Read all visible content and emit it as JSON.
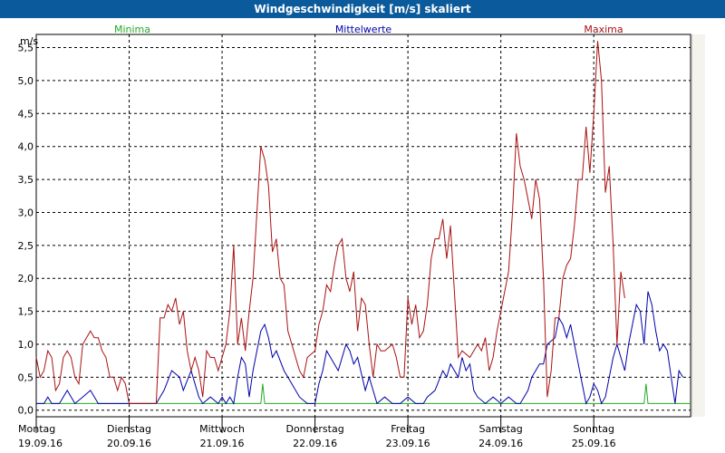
{
  "window": {
    "title": "Windgeschwindigkeit [m/s] skaliert"
  },
  "chart_data": {
    "type": "line",
    "title": "Windgeschwindigkeit [m/s] skaliert",
    "ylabel": "m/s",
    "ylim": [
      -0.1,
      5.7
    ],
    "yticks": [
      0.0,
      0.5,
      1.0,
      1.5,
      2.0,
      2.5,
      3.0,
      3.5,
      4.0,
      4.5,
      5.0,
      5.5
    ],
    "ytick_labels": [
      "0,0",
      "0,5",
      "1,0",
      "1,5",
      "2,0",
      "2,5",
      "3,0",
      "3,5",
      "4,0",
      "4,5",
      "5,0",
      "5,5"
    ],
    "grid": true,
    "legend_position": "top",
    "x_unit": "hours",
    "xlim": [
      0,
      169
    ],
    "days": [
      {
        "weekday": "Montag",
        "date": "19.09.16",
        "start": 0
      },
      {
        "weekday": "Dienstag",
        "date": "20.09.16",
        "start": 24
      },
      {
        "weekday": "Mittwoch",
        "date": "21.09.16",
        "start": 48
      },
      {
        "weekday": "Donnerstag",
        "date": "22.09.16",
        "start": 72
      },
      {
        "weekday": "Freitag",
        "date": "23.09.16",
        "start": 96
      },
      {
        "weekday": "Samstag",
        "date": "24.09.16",
        "start": 120
      },
      {
        "weekday": "Sonntag",
        "date": "25.09.16",
        "start": 144
      }
    ],
    "series": [
      {
        "name": "Minima",
        "color": "#22aa22",
        "points": [
          [
            0,
            0.1
          ],
          [
            25,
            0.1
          ],
          [
            58,
            0.1
          ],
          [
            58.5,
            0.4
          ],
          [
            59,
            0.1
          ],
          [
            140,
            0.1
          ],
          [
            157,
            0.1
          ],
          [
            157.5,
            0.4
          ],
          [
            158,
            0.1
          ],
          [
            169,
            0.1
          ]
        ]
      },
      {
        "name": "Mittelwerte",
        "color": "#0000aa",
        "points": [
          [
            0,
            0.1
          ],
          [
            2,
            0.1
          ],
          [
            3,
            0.2
          ],
          [
            4,
            0.1
          ],
          [
            6,
            0.1
          ],
          [
            8,
            0.3
          ],
          [
            10,
            0.1
          ],
          [
            12,
            0.2
          ],
          [
            14,
            0.3
          ],
          [
            16,
            0.1
          ],
          [
            20,
            0.1
          ],
          [
            24,
            0.1
          ],
          [
            31,
            0.1
          ],
          [
            33,
            0.3
          ],
          [
            35,
            0.6
          ],
          [
            37,
            0.5
          ],
          [
            38,
            0.3
          ],
          [
            40,
            0.6
          ],
          [
            42,
            0.2
          ],
          [
            43,
            0.1
          ],
          [
            45,
            0.2
          ],
          [
            47,
            0.1
          ],
          [
            48,
            0.2
          ],
          [
            49,
            0.1
          ],
          [
            50,
            0.2
          ],
          [
            51,
            0.1
          ],
          [
            52,
            0.5
          ],
          [
            53,
            0.8
          ],
          [
            54,
            0.7
          ],
          [
            55,
            0.2
          ],
          [
            56,
            0.6
          ],
          [
            58,
            1.2
          ],
          [
            59,
            1.3
          ],
          [
            60,
            1.1
          ],
          [
            61,
            0.8
          ],
          [
            62,
            0.9
          ],
          [
            64,
            0.6
          ],
          [
            66,
            0.4
          ],
          [
            68,
            0.2
          ],
          [
            70,
            0.1
          ],
          [
            72,
            0.1
          ],
          [
            73,
            0.4
          ],
          [
            74,
            0.6
          ],
          [
            75,
            0.9
          ],
          [
            76,
            0.8
          ],
          [
            78,
            0.6
          ],
          [
            80,
            1.0
          ],
          [
            81,
            0.9
          ],
          [
            82,
            0.7
          ],
          [
            83,
            0.8
          ],
          [
            85,
            0.3
          ],
          [
            86,
            0.5
          ],
          [
            88,
            0.1
          ],
          [
            90,
            0.2
          ],
          [
            92,
            0.1
          ],
          [
            94,
            0.1
          ],
          [
            96,
            0.2
          ],
          [
            98,
            0.1
          ],
          [
            100,
            0.1
          ],
          [
            101,
            0.2
          ],
          [
            103,
            0.3
          ],
          [
            105,
            0.6
          ],
          [
            106,
            0.5
          ],
          [
            107,
            0.7
          ],
          [
            109,
            0.5
          ],
          [
            110,
            0.8
          ],
          [
            111,
            0.6
          ],
          [
            112,
            0.7
          ],
          [
            113,
            0.3
          ],
          [
            114,
            0.2
          ],
          [
            116,
            0.1
          ],
          [
            118,
            0.2
          ],
          [
            120,
            0.1
          ],
          [
            122,
            0.2
          ],
          [
            124,
            0.1
          ],
          [
            125,
            0.1
          ],
          [
            126,
            0.2
          ],
          [
            127,
            0.3
          ],
          [
            128,
            0.5
          ],
          [
            129,
            0.6
          ],
          [
            130,
            0.7
          ],
          [
            131,
            0.7
          ],
          [
            132,
            1.0
          ],
          [
            134,
            1.1
          ],
          [
            135,
            1.4
          ],
          [
            136,
            1.3
          ],
          [
            137,
            1.1
          ],
          [
            138,
            1.3
          ],
          [
            139,
            1.0
          ],
          [
            140,
            0.7
          ],
          [
            141,
            0.4
          ],
          [
            142,
            0.1
          ],
          [
            143,
            0.2
          ],
          [
            144,
            0.4
          ],
          [
            145,
            0.3
          ],
          [
            146,
            0.1
          ],
          [
            147,
            0.2
          ],
          [
            148,
            0.5
          ],
          [
            149,
            0.8
          ],
          [
            150,
            1.0
          ],
          [
            151,
            0.8
          ],
          [
            152,
            0.6
          ],
          [
            153,
            1.0
          ],
          [
            154,
            1.3
          ],
          [
            155,
            1.6
          ],
          [
            156,
            1.5
          ],
          [
            157,
            1.0
          ],
          [
            158,
            1.8
          ],
          [
            159,
            1.6
          ],
          [
            160,
            1.2
          ],
          [
            161,
            0.9
          ],
          [
            162,
            1.0
          ],
          [
            163,
            0.9
          ],
          [
            164,
            0.5
          ],
          [
            165,
            0.1
          ],
          [
            166,
            0.6
          ],
          [
            167,
            0.5
          ]
        ]
      },
      {
        "name": "Maxima",
        "color": "#aa1111",
        "points": [
          [
            0,
            0.8
          ],
          [
            1,
            0.5
          ],
          [
            2,
            0.6
          ],
          [
            3,
            0.9
          ],
          [
            4,
            0.8
          ],
          [
            5,
            0.3
          ],
          [
            6,
            0.4
          ],
          [
            7,
            0.8
          ],
          [
            8,
            0.9
          ],
          [
            9,
            0.8
          ],
          [
            10,
            0.5
          ],
          [
            11,
            0.4
          ],
          [
            12,
            1.0
          ],
          [
            13,
            1.1
          ],
          [
            14,
            1.2
          ],
          [
            15,
            1.1
          ],
          [
            16,
            1.1
          ],
          [
            17,
            0.9
          ],
          [
            18,
            0.8
          ],
          [
            19,
            0.5
          ],
          [
            20,
            0.5
          ],
          [
            21,
            0.3
          ],
          [
            22,
            0.5
          ],
          [
            23,
            0.4
          ],
          [
            24,
            0.1
          ],
          [
            27,
            0.1
          ],
          [
            29,
            0.1
          ],
          [
            31,
            0.1
          ],
          [
            32,
            1.4
          ],
          [
            33,
            1.4
          ],
          [
            34,
            1.6
          ],
          [
            35,
            1.5
          ],
          [
            36,
            1.7
          ],
          [
            37,
            1.3
          ],
          [
            38,
            1.5
          ],
          [
            39,
            0.9
          ],
          [
            40,
            0.6
          ],
          [
            41,
            0.8
          ],
          [
            42,
            0.6
          ],
          [
            43,
            0.2
          ],
          [
            44,
            0.9
          ],
          [
            45,
            0.8
          ],
          [
            46,
            0.8
          ],
          [
            47,
            0.6
          ],
          [
            48,
            0.8
          ],
          [
            49,
            1.0
          ],
          [
            50,
            1.5
          ],
          [
            51,
            2.5
          ],
          [
            52,
            1.0
          ],
          [
            53,
            1.4
          ],
          [
            54,
            0.9
          ],
          [
            55,
            1.5
          ],
          [
            56,
            2.0
          ],
          [
            57,
            3.0
          ],
          [
            58,
            4.0
          ],
          [
            59,
            3.8
          ],
          [
            60,
            3.4
          ],
          [
            61,
            2.4
          ],
          [
            62,
            2.6
          ],
          [
            63,
            2.0
          ],
          [
            64,
            1.9
          ],
          [
            65,
            1.2
          ],
          [
            66,
            1.0
          ],
          [
            67,
            0.8
          ],
          [
            68,
            0.6
          ],
          [
            69,
            0.5
          ],
          [
            70,
            0.8
          ],
          [
            72,
            0.9
          ],
          [
            73,
            1.3
          ],
          [
            74,
            1.5
          ],
          [
            75,
            1.9
          ],
          [
            76,
            1.8
          ],
          [
            77,
            2.2
          ],
          [
            78,
            2.5
          ],
          [
            79,
            2.6
          ],
          [
            80,
            2.0
          ],
          [
            81,
            1.8
          ],
          [
            82,
            2.1
          ],
          [
            83,
            1.2
          ],
          [
            84,
            1.7
          ],
          [
            85,
            1.6
          ],
          [
            86,
            1.0
          ],
          [
            87,
            0.5
          ],
          [
            88,
            1.0
          ],
          [
            89,
            0.9
          ],
          [
            90,
            0.9
          ],
          [
            92,
            1.0
          ],
          [
            93,
            0.8
          ],
          [
            94,
            0.5
          ],
          [
            95,
            0.5
          ],
          [
            96,
            1.7
          ],
          [
            97,
            1.3
          ],
          [
            98,
            1.6
          ],
          [
            99,
            1.1
          ],
          [
            100,
            1.2
          ],
          [
            101,
            1.6
          ],
          [
            102,
            2.3
          ],
          [
            103,
            2.6
          ],
          [
            104,
            2.6
          ],
          [
            105,
            2.9
          ],
          [
            106,
            2.3
          ],
          [
            107,
            2.8
          ],
          [
            108,
            1.8
          ],
          [
            109,
            0.8
          ],
          [
            110,
            0.9
          ],
          [
            112,
            0.8
          ],
          [
            113,
            0.9
          ],
          [
            114,
            1.0
          ],
          [
            115,
            0.9
          ],
          [
            116,
            1.1
          ],
          [
            117,
            0.6
          ],
          [
            118,
            0.8
          ],
          [
            119,
            1.2
          ],
          [
            120,
            1.5
          ],
          [
            121,
            1.8
          ],
          [
            122,
            2.1
          ],
          [
            123,
            3.0
          ],
          [
            124,
            4.2
          ],
          [
            125,
            3.7
          ],
          [
            126,
            3.5
          ],
          [
            127,
            3.2
          ],
          [
            128,
            2.9
          ],
          [
            129,
            3.5
          ],
          [
            130,
            3.2
          ],
          [
            131,
            2.0
          ],
          [
            132,
            0.2
          ],
          [
            133,
            0.6
          ],
          [
            134,
            1.4
          ],
          [
            135,
            1.4
          ],
          [
            136,
            2.0
          ],
          [
            137,
            2.2
          ],
          [
            138,
            2.3
          ],
          [
            139,
            2.8
          ],
          [
            140,
            3.5
          ],
          [
            141,
            3.5
          ],
          [
            142,
            4.3
          ],
          [
            143,
            3.6
          ],
          [
            144,
            4.5
          ],
          [
            145,
            5.6
          ],
          [
            146,
            5.0
          ],
          [
            147,
            3.3
          ],
          [
            148,
            3.7
          ],
          [
            149,
            2.5
          ],
          [
            150,
            1.0
          ],
          [
            151,
            2.1
          ],
          [
            152,
            1.7
          ]
        ]
      }
    ]
  }
}
